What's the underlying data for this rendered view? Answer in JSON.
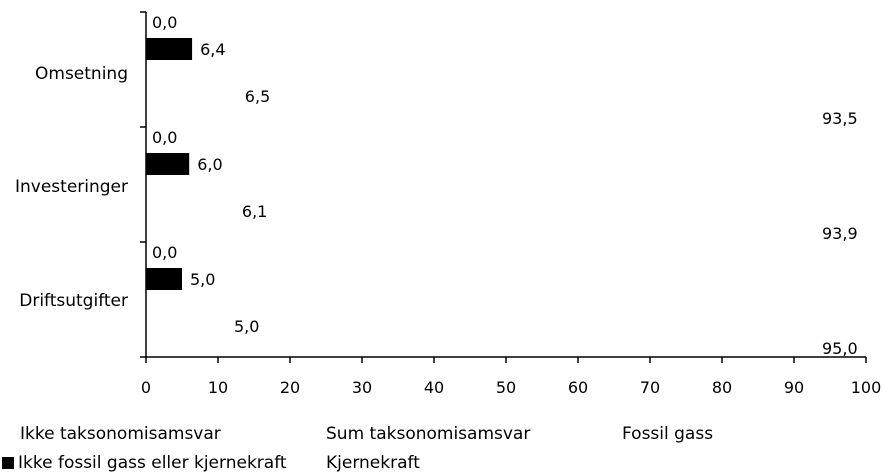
{
  "chart_data": {
    "type": "bar",
    "orientation": "horizontal",
    "categories": [
      "Omsetning",
      "Investeringer",
      "Driftsutgifter"
    ],
    "series": [
      {
        "name": "Fossil gass",
        "values": [
          0.0,
          0.0,
          0.0
        ],
        "labels": [
          "0,0",
          "0,0",
          "0,0"
        ],
        "color": "#ffffff"
      },
      {
        "name": "Ikke fossil gass eller kjernekraft",
        "values": [
          6.4,
          6.0,
          5.0
        ],
        "labels": [
          "6,4",
          "6,0",
          "5,0"
        ],
        "color": "#000000"
      },
      {
        "name": "Sum taksonomisamsvar",
        "values": [
          6.5,
          6.1,
          5.0
        ],
        "labels": [
          "6,5",
          "6,1",
          "5,0"
        ],
        "color": "#ffffff"
      },
      {
        "name": "Ikke taksonomisamsvar",
        "values": [
          93.5,
          93.9,
          95.0
        ],
        "labels": [
          "93,5",
          "93,9",
          "95,0"
        ],
        "color": "#ffffff"
      }
    ],
    "xlim": [
      0,
      100
    ],
    "x_ticks": [
      "0",
      "10",
      "20",
      "30",
      "40",
      "50",
      "60",
      "70",
      "80",
      "90",
      "100"
    ],
    "grid": false,
    "legend_position": "bottom"
  },
  "legend": {
    "items": [
      {
        "label": "Ikke taksonomisamsvar",
        "color": "#ffffff"
      },
      {
        "label": "Sum taksonomisamsvar",
        "color": "#ffffff"
      },
      {
        "label": "Fossil gass",
        "color": "#ffffff"
      },
      {
        "label": "Ikke fossil gass eller kjernekraft",
        "color": "#000000"
      },
      {
        "label": "Kjernekraft",
        "color": "#ffffff"
      }
    ]
  }
}
